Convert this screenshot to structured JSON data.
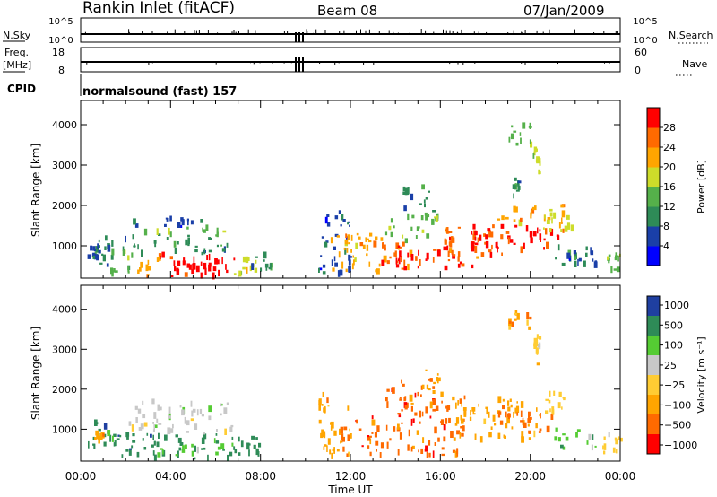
{
  "header": {
    "station": "Rankin Inlet (fitACF)",
    "beam": "Beam 08",
    "date": "07/Jan/2009"
  },
  "strip_labels": {
    "nsky": "N.Sky",
    "nsky_top": "10^5",
    "nsky_bottom": "10^0",
    "nsearch": "N.Search",
    "nsearch_top": "10^5",
    "nsearch_bottom": "10^0",
    "freq_line1": "Freq.",
    "freq_line2": "[MHz]",
    "freq_top": "18",
    "freq_bottom": "8",
    "nave": "Nave",
    "nave_top": "60",
    "nave_bottom": "0",
    "cpid": "CPID",
    "program": "normalsound (fast) 157"
  },
  "colors": {
    "power_scale": [
      "#0000ff",
      "#1a3fa8",
      "#2e8b57",
      "#55b04a",
      "#cddc2a",
      "#ffa500",
      "#ff6a00",
      "#ff0000"
    ],
    "velocity_scale": [
      "#ff0000",
      "#ff6a00",
      "#ffa500",
      "#ffcc33",
      "#c8c8c8",
      "#55cc33",
      "#2e8b57",
      "#1f3fa0"
    ]
  },
  "chart_data": [
    {
      "type": "heatmap",
      "ylabel": "Slant Range [km]",
      "ylim": [
        200,
        4600
      ],
      "yticks": [
        "1000",
        "2000",
        "3000",
        "4000"
      ],
      "colorbar_label": "Power [dB]",
      "colorbar_ticks": [
        "4",
        "8",
        "12",
        "16",
        "20",
        "24",
        "28"
      ],
      "blobs": [
        {
          "t0": 0.0,
          "t1": 1.5,
          "r0": 500,
          "r1": 1200,
          "c": 2
        },
        {
          "t0": 0.3,
          "t1": 1.2,
          "r0": 700,
          "r1": 1000,
          "c": 1
        },
        {
          "t0": 1.3,
          "t1": 2.5,
          "r0": 300,
          "r1": 900,
          "c": 3
        },
        {
          "t0": 2.5,
          "t1": 3.5,
          "r0": 200,
          "r1": 800,
          "c": 5
        },
        {
          "t0": 3.5,
          "t1": 6.8,
          "r0": 250,
          "r1": 800,
          "c": 7
        },
        {
          "t0": 4.0,
          "t1": 6.3,
          "r0": 400,
          "r1": 650,
          "c": 7
        },
        {
          "t0": 6.8,
          "t1": 7.8,
          "r0": 300,
          "r1": 700,
          "c": 4
        },
        {
          "t0": 1.8,
          "t1": 6.8,
          "r0": 800,
          "r1": 1200,
          "c": 2
        },
        {
          "t0": 2.2,
          "t1": 6.5,
          "r0": 1200,
          "r1": 1450,
          "c": 3
        },
        {
          "t0": 2.2,
          "t1": 6.5,
          "r0": 1450,
          "r1": 1700,
          "c": 1
        },
        {
          "t0": 7.5,
          "t1": 8.5,
          "r0": 300,
          "r1": 800,
          "c": 2
        },
        {
          "t0": 10.5,
          "t1": 12.0,
          "r0": 300,
          "r1": 1900,
          "c": 1
        },
        {
          "t0": 11.0,
          "t1": 13.5,
          "r0": 300,
          "r1": 1300,
          "c": 5
        },
        {
          "t0": 13.0,
          "t1": 16.5,
          "r0": 400,
          "r1": 1100,
          "c": 6
        },
        {
          "t0": 14.0,
          "t1": 17.5,
          "r0": 450,
          "r1": 850,
          "c": 7
        },
        {
          "t0": 13.5,
          "t1": 16.0,
          "r0": 1100,
          "r1": 1800,
          "c": 3
        },
        {
          "t0": 14.3,
          "t1": 15.8,
          "r0": 1800,
          "r1": 2500,
          "c": 2
        },
        {
          "t0": 16.0,
          "t1": 19.0,
          "r0": 700,
          "r1": 1500,
          "c": 6
        },
        {
          "t0": 17.0,
          "t1": 21.5,
          "r0": 900,
          "r1": 1500,
          "c": 7
        },
        {
          "t0": 18.5,
          "t1": 21.5,
          "r0": 1500,
          "r1": 2000,
          "c": 5
        },
        {
          "t0": 20.5,
          "t1": 21.8,
          "r0": 1200,
          "r1": 1900,
          "c": 4
        },
        {
          "t0": 21.0,
          "t1": 22.5,
          "r0": 500,
          "r1": 1000,
          "c": 2
        },
        {
          "t0": 21.5,
          "t1": 23.0,
          "r0": 400,
          "r1": 900,
          "c": 1
        },
        {
          "t0": 23.0,
          "t1": 24.0,
          "r0": 400,
          "r1": 900,
          "c": 3
        },
        {
          "t0": 19.0,
          "t1": 20.0,
          "r0": 3500,
          "r1": 4000,
          "c": 3
        },
        {
          "t0": 20.1,
          "t1": 20.4,
          "r0": 2600,
          "r1": 3400,
          "c": 4
        },
        {
          "t0": 19.2,
          "t1": 19.6,
          "r0": 2200,
          "r1": 2800,
          "c": 2
        }
      ]
    },
    {
      "type": "heatmap",
      "ylabel": "Slant Range [km]",
      "ylim": [
        200,
        4600
      ],
      "yticks": [
        "1000",
        "2000",
        "3000",
        "4000"
      ],
      "colorbar_label": "Velocity [m s⁻¹]",
      "colorbar_ticks": [
        "1000",
        "500",
        "100",
        "25",
        "−25",
        "−100",
        "−500",
        "−1000"
      ],
      "blobs": [
        {
          "t0": 0.0,
          "t1": 1.5,
          "r0": 500,
          "r1": 1200,
          "c": 6
        },
        {
          "t0": 0.5,
          "t1": 1.0,
          "r0": 700,
          "r1": 1000,
          "c": 2
        },
        {
          "t0": 1.3,
          "t1": 7.0,
          "r0": 250,
          "r1": 900,
          "c": 6
        },
        {
          "t0": 3.5,
          "t1": 6.5,
          "r0": 300,
          "r1": 600,
          "c": 5
        },
        {
          "t0": 1.8,
          "t1": 6.8,
          "r0": 900,
          "r1": 1200,
          "c": 4
        },
        {
          "t0": 2.2,
          "t1": 6.5,
          "r0": 1200,
          "r1": 1700,
          "c": 4
        },
        {
          "t0": 6.8,
          "t1": 8.3,
          "r0": 300,
          "r1": 800,
          "c": 6
        },
        {
          "t0": 10.5,
          "t1": 12.0,
          "r0": 300,
          "r1": 1900,
          "c": 2
        },
        {
          "t0": 11.5,
          "t1": 17.0,
          "r0": 350,
          "r1": 1300,
          "c": 1
        },
        {
          "t0": 13.5,
          "t1": 16.5,
          "r0": 1300,
          "r1": 2200,
          "c": 1
        },
        {
          "t0": 15.0,
          "t1": 16.0,
          "r0": 1800,
          "r1": 2500,
          "c": 2
        },
        {
          "t0": 16.5,
          "t1": 20.5,
          "r0": 700,
          "r1": 1800,
          "c": 2
        },
        {
          "t0": 18.5,
          "t1": 21.0,
          "r0": 900,
          "r1": 1400,
          "c": 1
        },
        {
          "t0": 20.5,
          "t1": 21.8,
          "r0": 1200,
          "r1": 1900,
          "c": 3
        },
        {
          "t0": 21.0,
          "t1": 23.0,
          "r0": 500,
          "r1": 1000,
          "c": 5
        },
        {
          "t0": 23.0,
          "t1": 24.0,
          "r0": 400,
          "r1": 900,
          "c": 3
        },
        {
          "t0": 19.0,
          "t1": 20.0,
          "r0": 3500,
          "r1": 4000,
          "c": 2
        },
        {
          "t0": 20.1,
          "t1": 20.4,
          "r0": 2600,
          "r1": 3400,
          "c": 3
        }
      ]
    }
  ],
  "x_axis": {
    "label": "Time UT",
    "ticks": [
      "00:00",
      "04:00",
      "08:00",
      "12:00",
      "16:00",
      "20:00",
      "00:00"
    ],
    "range_hours": [
      0,
      24
    ]
  }
}
